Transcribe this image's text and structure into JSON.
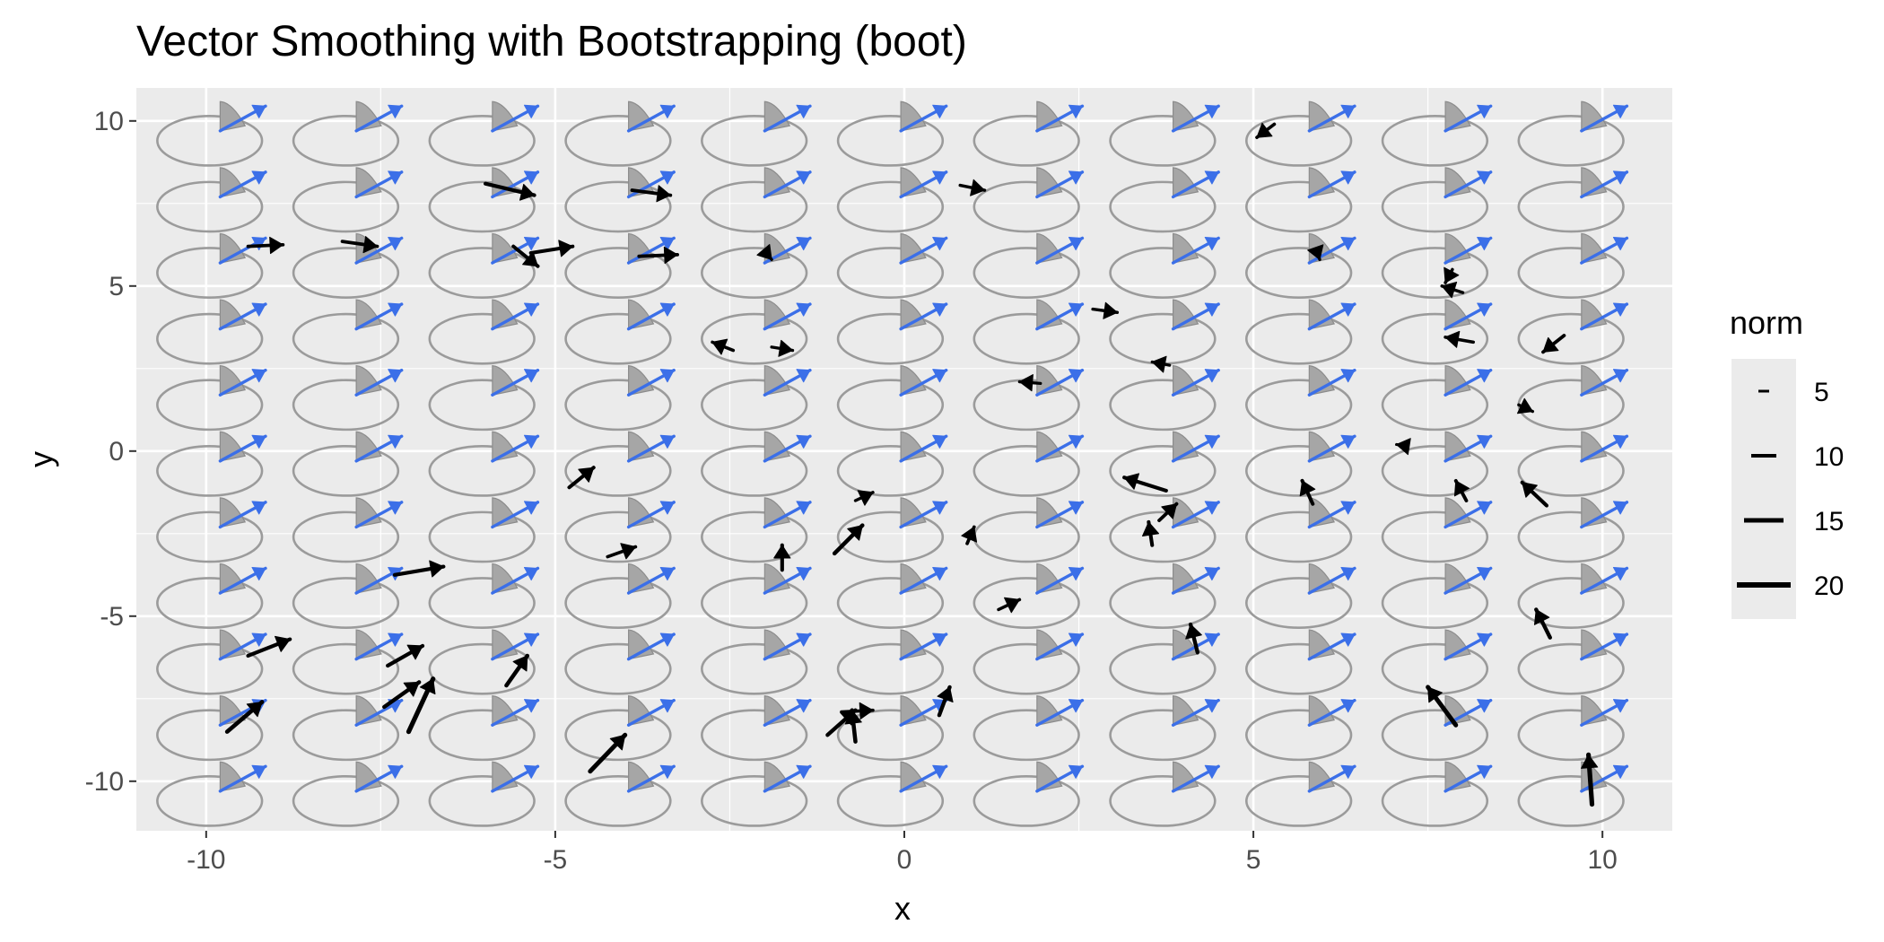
{
  "chart_data": {
    "type": "vector-field",
    "title": "Vector Smoothing with Bootstrapping (boot)",
    "xlabel": "x",
    "ylabel": "y",
    "xlim": [
      -11,
      11
    ],
    "ylim": [
      -11.5,
      11
    ],
    "x_ticks": [
      -10,
      -5,
      0,
      5,
      10
    ],
    "x_tick_labels": [
      "-10",
      "-5",
      "0",
      "5",
      "10"
    ],
    "y_ticks": [
      -10,
      -5,
      0,
      5,
      10
    ],
    "y_tick_labels": [
      "-10",
      "-5",
      "0",
      "5",
      "10"
    ],
    "grid": true,
    "colors": {
      "panel": "#ebebeb",
      "grid": "#ffffff",
      "ellipse": "#9b9b9b",
      "wedge_fill": "#a6a6a6",
      "smoothed_arrow": "#3b6fe8",
      "observed_arrow": "#000000"
    },
    "smoothed_grid": {
      "x": [
        -9.8,
        -7.85,
        -5.9,
        -3.95,
        -2.0,
        -0.05,
        1.9,
        3.85,
        5.8,
        7.75,
        9.7
      ],
      "y": [
        -10.3,
        -8.3,
        -6.3,
        -4.3,
        -2.3,
        -0.3,
        1.7,
        3.7,
        5.7,
        7.7,
        9.7
      ],
      "vector_dx": 0.65,
      "vector_dy": 0.75,
      "ellipse_center_dx": -0.15,
      "ellipse_center_dy": -0.3,
      "ellipse_rx": 0.75,
      "ellipse_ry": 0.75,
      "wedge_from_deg": 20,
      "wedge_to_deg": 90
    },
    "observed_vectors": [
      {
        "x": -9.4,
        "y": 6.2,
        "dx": 0.5,
        "dy": 0.05
      },
      {
        "x": -8.05,
        "y": 6.35,
        "dx": 0.5,
        "dy": -0.15
      },
      {
        "x": -6.0,
        "y": 8.1,
        "dx": 0.7,
        "dy": -0.35
      },
      {
        "x": -5.6,
        "y": 6.2,
        "dx": 0.35,
        "dy": -0.6
      },
      {
        "x": -5.35,
        "y": 6.0,
        "dx": 0.6,
        "dy": 0.2
      },
      {
        "x": -3.9,
        "y": 7.9,
        "dx": 0.55,
        "dy": -0.15
      },
      {
        "x": -3.8,
        "y": 5.9,
        "dx": 0.55,
        "dy": 0.05
      },
      {
        "x": -2.0,
        "y": 6.05,
        "dx": 0.1,
        "dy": -0.25
      },
      {
        "x": 0.8,
        "y": 8.05,
        "dx": 0.35,
        "dy": -0.15
      },
      {
        "x": 5.3,
        "y": 9.9,
        "dx": -0.25,
        "dy": -0.4
      },
      {
        "x": 5.9,
        "y": 6.1,
        "dx": 0.05,
        "dy": -0.3
      },
      {
        "x": 7.85,
        "y": 5.5,
        "dx": -0.1,
        "dy": -0.4
      },
      {
        "x": 8.0,
        "y": 4.8,
        "dx": -0.3,
        "dy": 0.2
      },
      {
        "x": 2.7,
        "y": 4.3,
        "dx": 0.35,
        "dy": -0.1
      },
      {
        "x": 3.8,
        "y": 2.6,
        "dx": -0.25,
        "dy": 0.1
      },
      {
        "x": -2.45,
        "y": 3.05,
        "dx": -0.3,
        "dy": 0.25
      },
      {
        "x": -1.9,
        "y": 3.15,
        "dx": 0.3,
        "dy": -0.1
      },
      {
        "x": 8.15,
        "y": 3.3,
        "dx": -0.4,
        "dy": 0.15
      },
      {
        "x": 9.45,
        "y": 3.5,
        "dx": -0.3,
        "dy": -0.5
      },
      {
        "x": 1.95,
        "y": 2.05,
        "dx": -0.3,
        "dy": 0.05
      },
      {
        "x": 8.8,
        "y": 1.4,
        "dx": 0.2,
        "dy": -0.2
      },
      {
        "x": 7.2,
        "y": 0.15,
        "dx": -0.15,
        "dy": 0.05
      },
      {
        "x": 3.75,
        "y": -1.2,
        "dx": -0.6,
        "dy": 0.4
      },
      {
        "x": 5.85,
        "y": -1.6,
        "dx": -0.15,
        "dy": 0.7
      },
      {
        "x": 8.05,
        "y": -1.5,
        "dx": -0.15,
        "dy": 0.6
      },
      {
        "x": 9.2,
        "y": -1.65,
        "dx": -0.35,
        "dy": 0.7
      },
      {
        "x": -4.8,
        "y": -1.1,
        "dx": 0.35,
        "dy": 0.6
      },
      {
        "x": -0.7,
        "y": -1.5,
        "dx": 0.25,
        "dy": 0.25
      },
      {
        "x": -1.0,
        "y": -3.1,
        "dx": 0.4,
        "dy": 0.85
      },
      {
        "x": 0.9,
        "y": -2.8,
        "dx": 0.1,
        "dy": 0.5
      },
      {
        "x": 3.55,
        "y": -2.85,
        "dx": -0.05,
        "dy": 0.7
      },
      {
        "x": 3.65,
        "y": -2.1,
        "dx": 0.25,
        "dy": 0.5
      },
      {
        "x": -1.75,
        "y": -3.6,
        "dx": 0.0,
        "dy": 0.75
      },
      {
        "x": -4.25,
        "y": -3.2,
        "dx": 0.4,
        "dy": 0.3
      },
      {
        "x": -7.3,
        "y": -3.75,
        "dx": 0.7,
        "dy": 0.25
      },
      {
        "x": 1.35,
        "y": -4.8,
        "dx": 0.3,
        "dy": 0.3
      },
      {
        "x": -9.4,
        "y": -6.2,
        "dx": 0.6,
        "dy": 0.5
      },
      {
        "x": -7.4,
        "y": -6.5,
        "dx": 0.5,
        "dy": 0.6
      },
      {
        "x": -5.7,
        "y": -7.1,
        "dx": 0.3,
        "dy": 0.9
      },
      {
        "x": 4.2,
        "y": -6.1,
        "dx": -0.1,
        "dy": 0.85
      },
      {
        "x": 9.25,
        "y": -5.65,
        "dx": -0.2,
        "dy": 0.85
      },
      {
        "x": -7.45,
        "y": -7.75,
        "dx": 0.5,
        "dy": 0.75
      },
      {
        "x": -7.1,
        "y": -8.5,
        "dx": 0.35,
        "dy": 1.6
      },
      {
        "x": -9.7,
        "y": -8.5,
        "dx": 0.5,
        "dy": 0.9
      },
      {
        "x": -4.5,
        "y": -9.7,
        "dx": 0.5,
        "dy": 1.1
      },
      {
        "x": -1.1,
        "y": -8.6,
        "dx": 0.4,
        "dy": 0.75
      },
      {
        "x": -0.7,
        "y": -8.8,
        "dx": -0.05,
        "dy": 0.95
      },
      {
        "x": -0.9,
        "y": -7.9,
        "dx": 0.45,
        "dy": 0.05
      },
      {
        "x": 0.5,
        "y": -8.0,
        "dx": 0.15,
        "dy": 0.85
      },
      {
        "x": 7.9,
        "y": -8.3,
        "dx": -0.4,
        "dy": 1.15
      },
      {
        "x": 9.85,
        "y": -10.7,
        "dx": -0.05,
        "dy": 1.5
      }
    ],
    "legend": {
      "title": "norm",
      "position": "right",
      "entries": [
        {
          "label": "5",
          "value": 5
        },
        {
          "label": "10",
          "value": 10
        },
        {
          "label": "15",
          "value": 15
        },
        {
          "label": "20",
          "value": 20
        }
      ]
    }
  }
}
